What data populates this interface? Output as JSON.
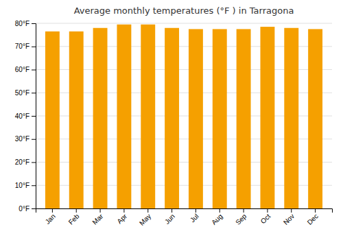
{
  "chart_data": {
    "type": "bar",
    "title": "Average monthly temperatures (°F ) in Tarragona",
    "categories": [
      "Jan",
      "Feb",
      "Mar",
      "Apr",
      "May",
      "Jun",
      "Jul",
      "Aug",
      "Sep",
      "Oct",
      "Nov",
      "Dec"
    ],
    "values": [
      76.5,
      76.5,
      78.0,
      79.5,
      79.5,
      78.0,
      77.5,
      77.5,
      77.5,
      78.5,
      78.0,
      77.5
    ],
    "color": "#F5A000",
    "ylim": [
      0,
      80
    ],
    "yticks": [
      {
        "value": 0,
        "label": "0°F"
      },
      {
        "value": 10,
        "label": "10°F"
      },
      {
        "value": 20,
        "label": "20°F"
      },
      {
        "value": 30,
        "label": "30°F"
      },
      {
        "value": 40,
        "label": "40°F"
      },
      {
        "value": 50,
        "label": "50°F"
      },
      {
        "value": 60,
        "label": "60°F"
      },
      {
        "value": 70,
        "label": "70°F"
      },
      {
        "value": 80,
        "label": "80°F"
      }
    ],
    "grid": true
  }
}
